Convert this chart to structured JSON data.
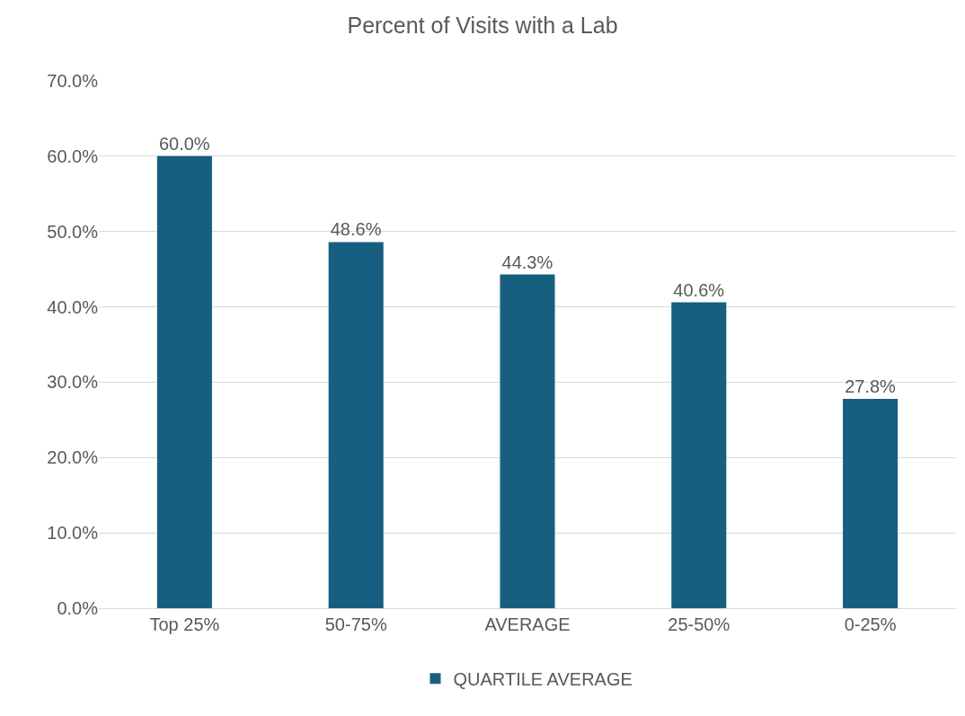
{
  "chart_data": {
    "type": "bar",
    "title": "Percent of Visits with a Lab",
    "categories": [
      "Top 25%",
      "50-75%",
      "AVERAGE",
      "25-50%",
      "0-25%"
    ],
    "series": [
      {
        "name": "QUARTILE AVERAGE",
        "color": "#175f80",
        "values": [
          60.0,
          48.6,
          44.3,
          40.6,
          27.8
        ],
        "value_labels": [
          "60.0%",
          "48.6%",
          "44.3%",
          "40.6%",
          "27.8%"
        ]
      }
    ],
    "ylim": [
      0,
      70
    ],
    "yticks": [
      {
        "value": 0,
        "label": "0.0%"
      },
      {
        "value": 10,
        "label": "10.0%"
      },
      {
        "value": 20,
        "label": "20.0%"
      },
      {
        "value": 30,
        "label": "30.0%"
      },
      {
        "value": 40,
        "label": "40.0%"
      },
      {
        "value": 50,
        "label": "50.0%"
      },
      {
        "value": 60,
        "label": "60.0%"
      },
      {
        "value": 70,
        "label": "70.0%"
      }
    ],
    "grid": "y",
    "legend": "bottom"
  }
}
